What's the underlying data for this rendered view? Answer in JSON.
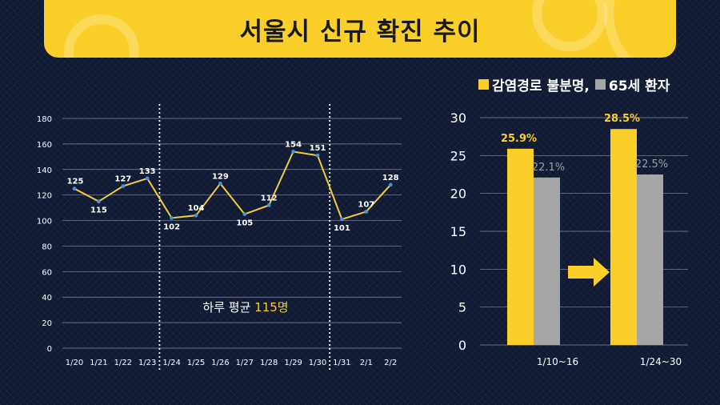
{
  "title": "서울시 신규 확진 추이",
  "colors": {
    "yellow": "#fbcf2a",
    "gray": "#a6a6a6",
    "line": "#f2cf3a",
    "point": "#4a90d9",
    "background": "#111a33"
  },
  "chart_data": [
    {
      "type": "line",
      "categories": [
        "1/20",
        "1/21",
        "1/22",
        "1/23",
        "1/24",
        "1/25",
        "1/26",
        "1/27",
        "1/28",
        "1/29",
        "1/30",
        "1/31",
        "2/1",
        "2/2"
      ],
      "values": [
        125,
        115,
        127,
        133,
        102,
        104,
        129,
        105,
        112,
        154,
        151,
        101,
        107,
        128
      ],
      "ylim": [
        0,
        180
      ],
      "yticks": [
        0,
        20,
        40,
        60,
        80,
        100,
        120,
        140,
        160,
        180
      ],
      "grid": true,
      "dividers_after": [
        "1/23",
        "1/30"
      ],
      "annotation": {
        "prefix": "하루 평균 ",
        "value": "115명"
      }
    },
    {
      "type": "bar",
      "categories": [
        "1/10~16",
        "1/24~30"
      ],
      "series": [
        {
          "name": "감염경로 불분명,",
          "values": [
            25.9,
            28.5
          ],
          "labels": [
            "25.9%",
            "28.5%"
          ],
          "color": "#fbcf2a"
        },
        {
          "name": "65세 환자",
          "values": [
            22.1,
            22.5
          ],
          "labels": [
            "22.1%",
            "22.5%"
          ],
          "color": "#a6a6a6"
        }
      ],
      "ylim": [
        0,
        30
      ],
      "yticks": [
        0,
        5,
        10,
        15,
        20,
        25,
        30
      ],
      "grid": true,
      "legend": "top"
    }
  ]
}
